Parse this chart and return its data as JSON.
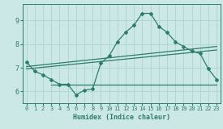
{
  "xlabel": "Humidex (Indice chaleur)",
  "xlim": [
    -0.5,
    23.5
  ],
  "ylim": [
    5.5,
    9.7
  ],
  "yticks": [
    6,
    7,
    8,
    9
  ],
  "xticks": [
    0,
    1,
    2,
    3,
    4,
    5,
    6,
    7,
    8,
    9,
    10,
    11,
    12,
    13,
    14,
    15,
    16,
    17,
    18,
    19,
    20,
    21,
    22,
    23
  ],
  "background_color": "#cce8e4",
  "line_color": "#2d7d6e",
  "grid_color": "#b0d8d2",
  "curve1_x": [
    0,
    1,
    2,
    3,
    4,
    5,
    6,
    7,
    8,
    9,
    10,
    11,
    12,
    13,
    14,
    15,
    16,
    17,
    18,
    19,
    20,
    21,
    22,
    23
  ],
  "curve1_y": [
    7.25,
    6.85,
    6.7,
    6.5,
    6.3,
    6.3,
    5.85,
    6.05,
    6.1,
    7.2,
    7.5,
    8.1,
    8.5,
    8.8,
    9.3,
    9.3,
    8.75,
    8.5,
    8.1,
    7.9,
    7.7,
    7.6,
    6.95,
    6.5
  ],
  "trend1_x": [
    0,
    23
  ],
  "trend1_y": [
    6.95,
    7.75
  ],
  "trend2_x": [
    0,
    23
  ],
  "trend2_y": [
    7.05,
    7.9
  ],
  "hline_x": [
    3,
    23
  ],
  "hline_y": [
    6.3,
    6.3
  ]
}
